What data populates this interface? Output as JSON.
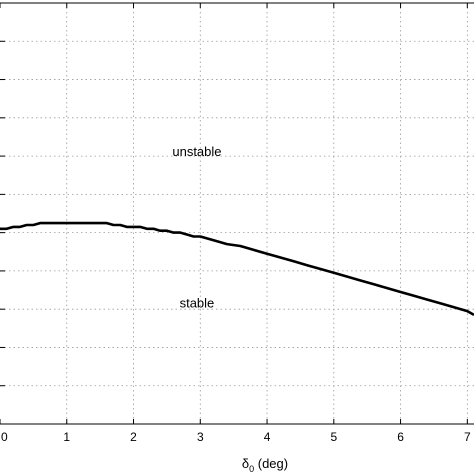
{
  "chart_data": {
    "type": "line",
    "xlabel": "δ0 (deg)",
    "xlabel_main": "δ",
    "xlabel_sub": "0",
    "xlabel_rest": " (deg)",
    "ylabel": "",
    "xlim": [
      0,
      7.1
    ],
    "ylim": [
      0,
      11
    ],
    "x_ticks": [
      0,
      1,
      2,
      3,
      4,
      5,
      6,
      7
    ],
    "x_tick_labels": [
      "0",
      "1",
      "2",
      "3",
      "4",
      "5",
      "6",
      "7"
    ],
    "y_ticks": [
      1,
      2,
      3,
      4,
      5,
      6,
      7,
      8,
      9,
      10,
      11
    ],
    "grid": true,
    "series": [
      {
        "x": [
          0,
          0.1,
          0.2,
          0.3,
          0.4,
          0.5,
          0.6,
          0.7,
          0.8,
          0.9,
          1.0,
          1.1,
          1.2,
          1.3,
          1.4,
          1.5,
          1.6,
          1.7,
          1.8,
          1.9,
          2.0,
          2.1,
          2.2,
          2.3,
          2.4,
          2.5,
          2.6,
          2.7,
          2.8,
          2.9,
          3.0,
          3.2,
          3.4,
          3.6,
          3.8,
          4.0,
          4.2,
          4.4,
          4.6,
          4.8,
          5.0,
          5.2,
          5.4,
          5.6,
          5.8,
          6.0,
          6.2,
          6.4,
          6.6,
          6.8,
          7.0,
          7.1
        ],
        "y": [
          5.1,
          5.1,
          5.15,
          5.15,
          5.2,
          5.2,
          5.25,
          5.25,
          5.25,
          5.25,
          5.25,
          5.25,
          5.25,
          5.25,
          5.25,
          5.25,
          5.25,
          5.2,
          5.2,
          5.15,
          5.15,
          5.15,
          5.1,
          5.1,
          5.05,
          5.05,
          5.0,
          5.0,
          4.95,
          4.9,
          4.9,
          4.8,
          4.7,
          4.65,
          4.55,
          4.45,
          4.35,
          4.25,
          4.15,
          4.05,
          3.95,
          3.85,
          3.75,
          3.65,
          3.55,
          3.45,
          3.35,
          3.25,
          3.15,
          3.05,
          2.95,
          2.85
        ]
      }
    ],
    "annotations": [
      {
        "text": "unstable",
        "x": 2.95,
        "y": 7.0
      },
      {
        "text": "stable",
        "x": 2.95,
        "y": 3.05
      }
    ]
  }
}
